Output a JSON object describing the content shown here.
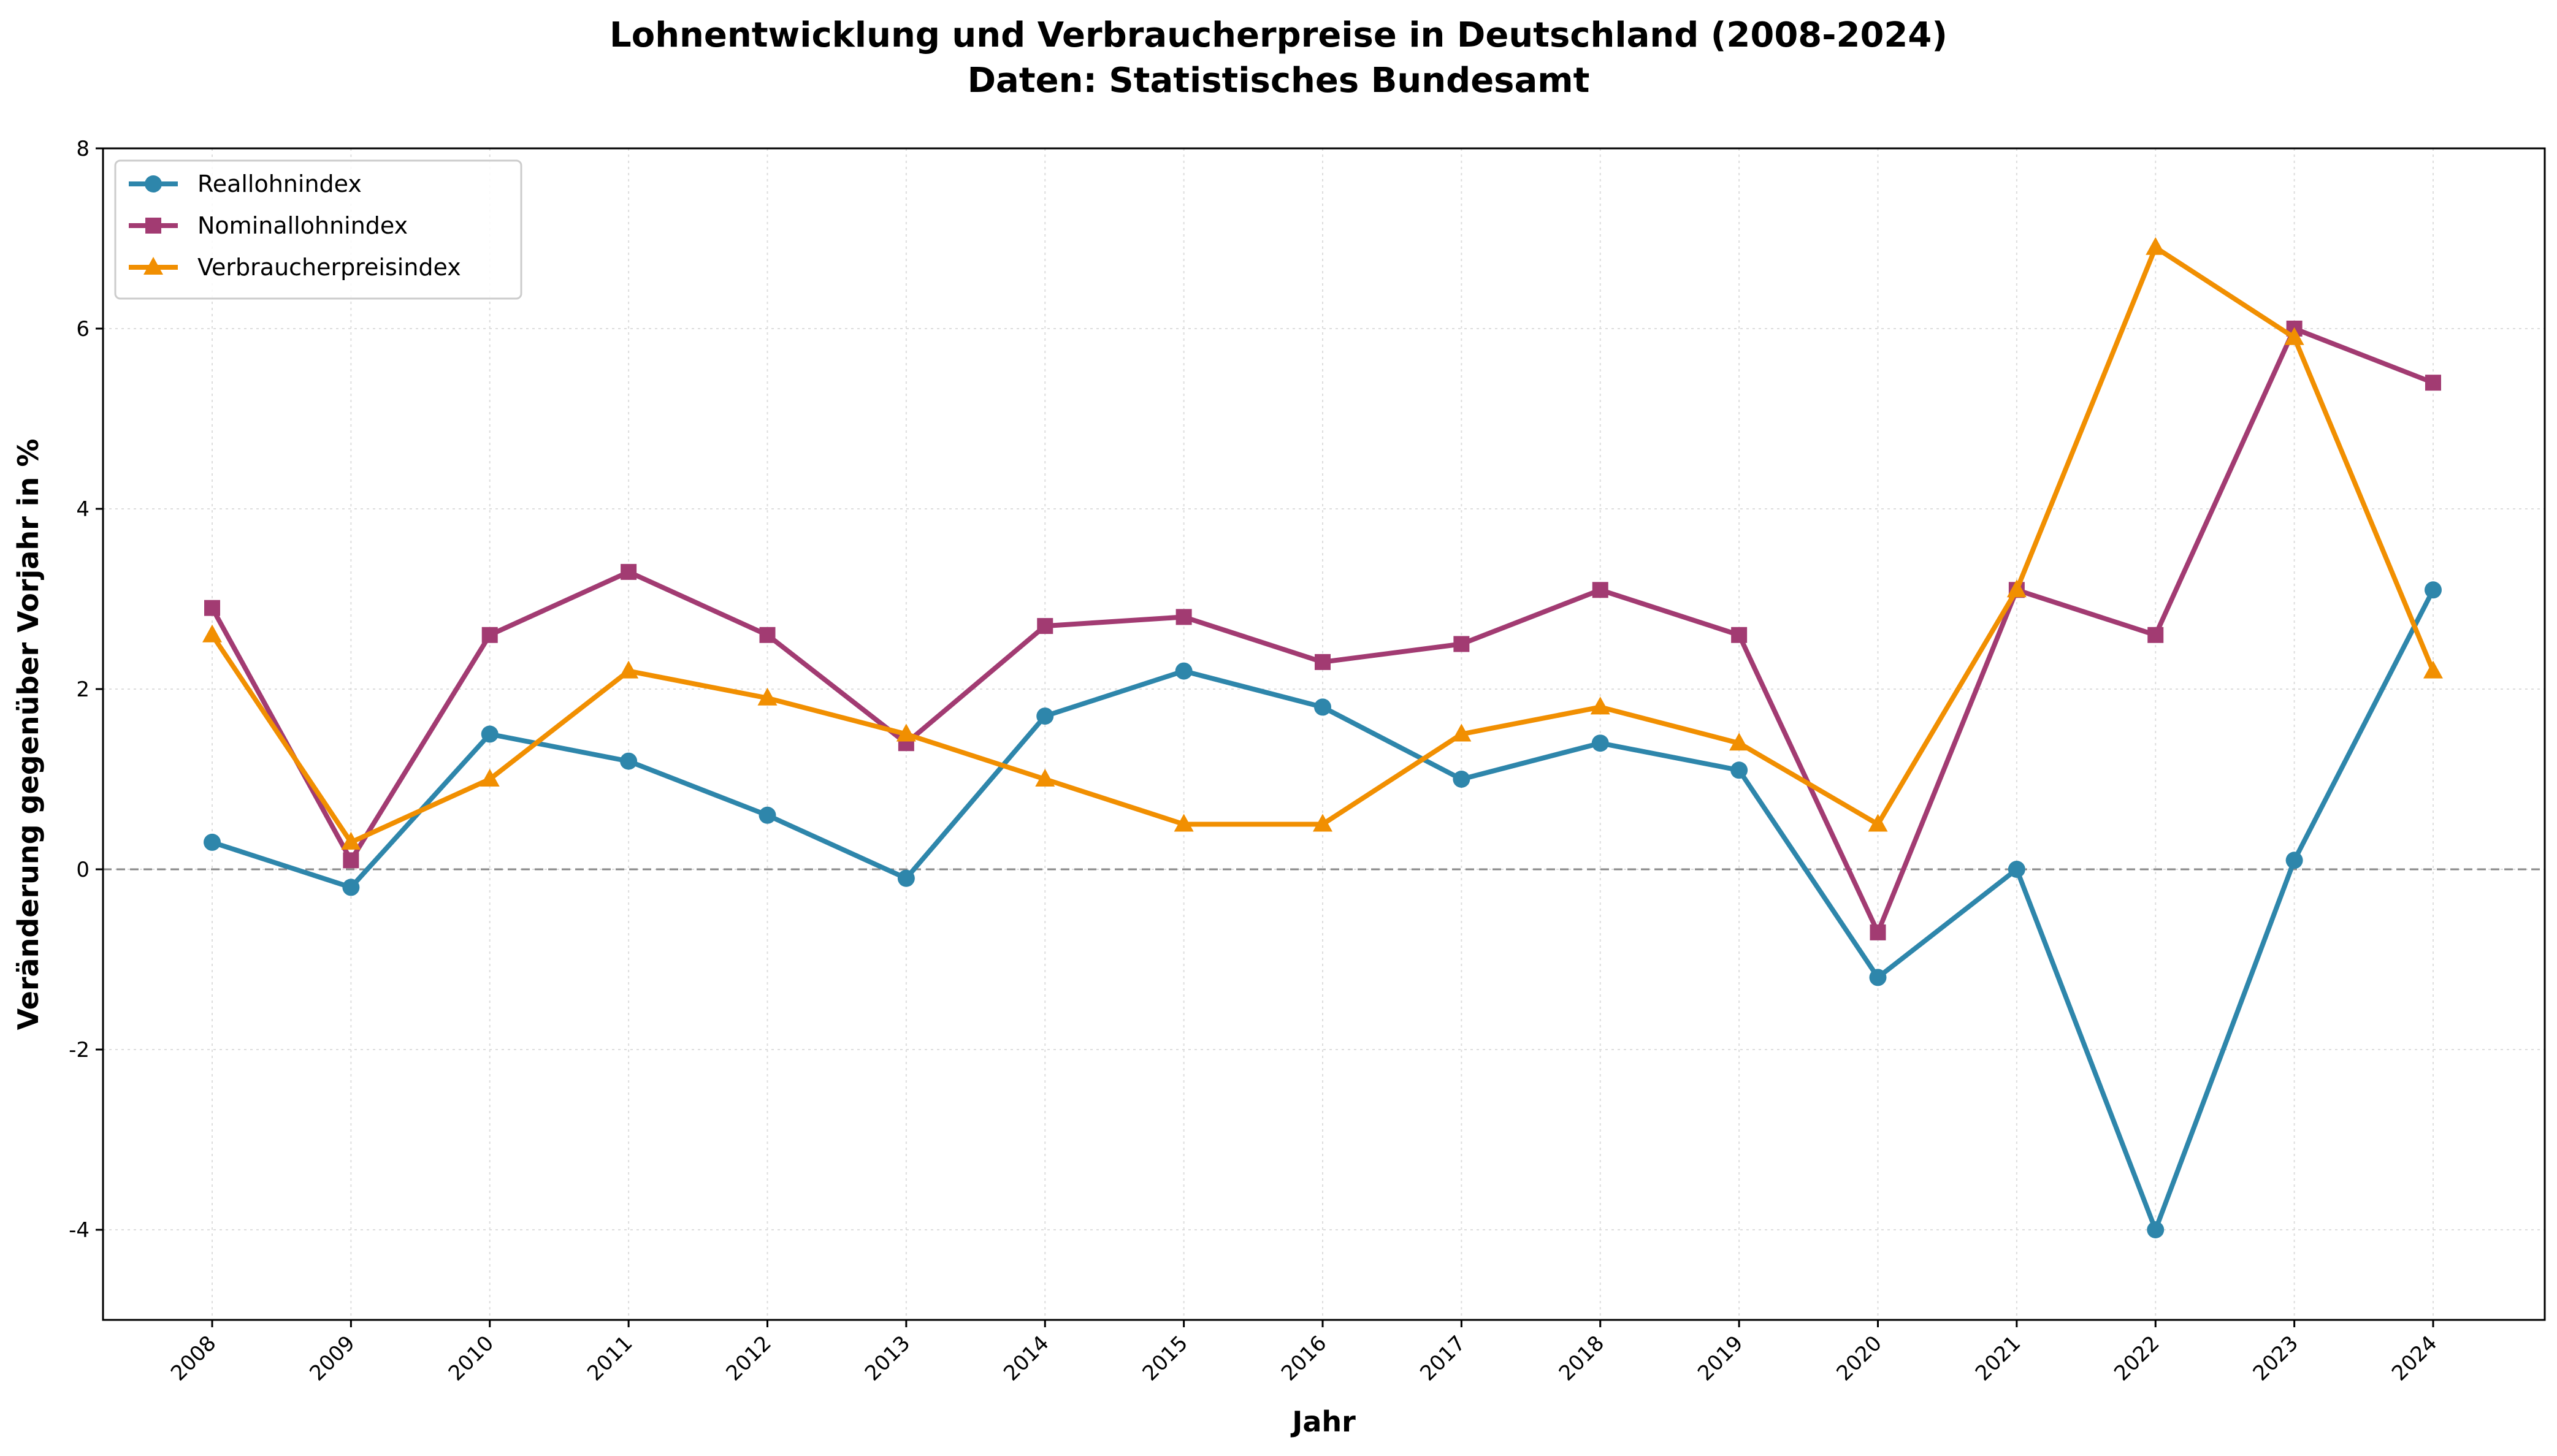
{
  "chart_data": {
    "type": "line",
    "title": "Lohnentwicklung und Verbraucherpreise in Deutschland (2008-2024)",
    "subtitle": "Daten: Statistisches Bundesamt",
    "xlabel": "Jahr",
    "ylabel": "Veränderung gegenüber Vorjahr in %",
    "x": [
      "2008",
      "2009",
      "2010",
      "2011",
      "2012",
      "2013",
      "2014",
      "2015",
      "2016",
      "2017",
      "2018",
      "2019",
      "2020",
      "2021",
      "2022",
      "2023",
      "2024"
    ],
    "ylim": [
      -5,
      8
    ],
    "yticks": [
      -4,
      -2,
      0,
      2,
      4,
      6,
      8
    ],
    "grid": true,
    "legend": "top-left",
    "zero_line": true,
    "series": [
      {
        "name": "Reallohnindex",
        "color": "#2E86AB",
        "marker": "circle",
        "values": [
          0.3,
          -0.2,
          1.5,
          1.2,
          0.6,
          -0.1,
          1.7,
          2.2,
          1.8,
          1.0,
          1.4,
          1.1,
          -1.2,
          0.0,
          -4.0,
          0.1,
          3.1
        ]
      },
      {
        "name": "Nominallohnindex",
        "color": "#A23B72",
        "marker": "square",
        "values": [
          2.9,
          0.1,
          2.6,
          3.3,
          2.6,
          1.4,
          2.7,
          2.8,
          2.3,
          2.5,
          3.1,
          2.6,
          -0.7,
          3.1,
          2.6,
          6.0,
          5.4
        ]
      },
      {
        "name": "Verbraucherpreisindex",
        "color": "#F18F01",
        "marker": "triangle",
        "values": [
          2.6,
          0.3,
          1.0,
          2.2,
          1.9,
          1.5,
          1.0,
          0.5,
          0.5,
          1.5,
          1.8,
          1.4,
          0.5,
          3.1,
          6.9,
          5.9,
          2.2
        ]
      }
    ]
  }
}
